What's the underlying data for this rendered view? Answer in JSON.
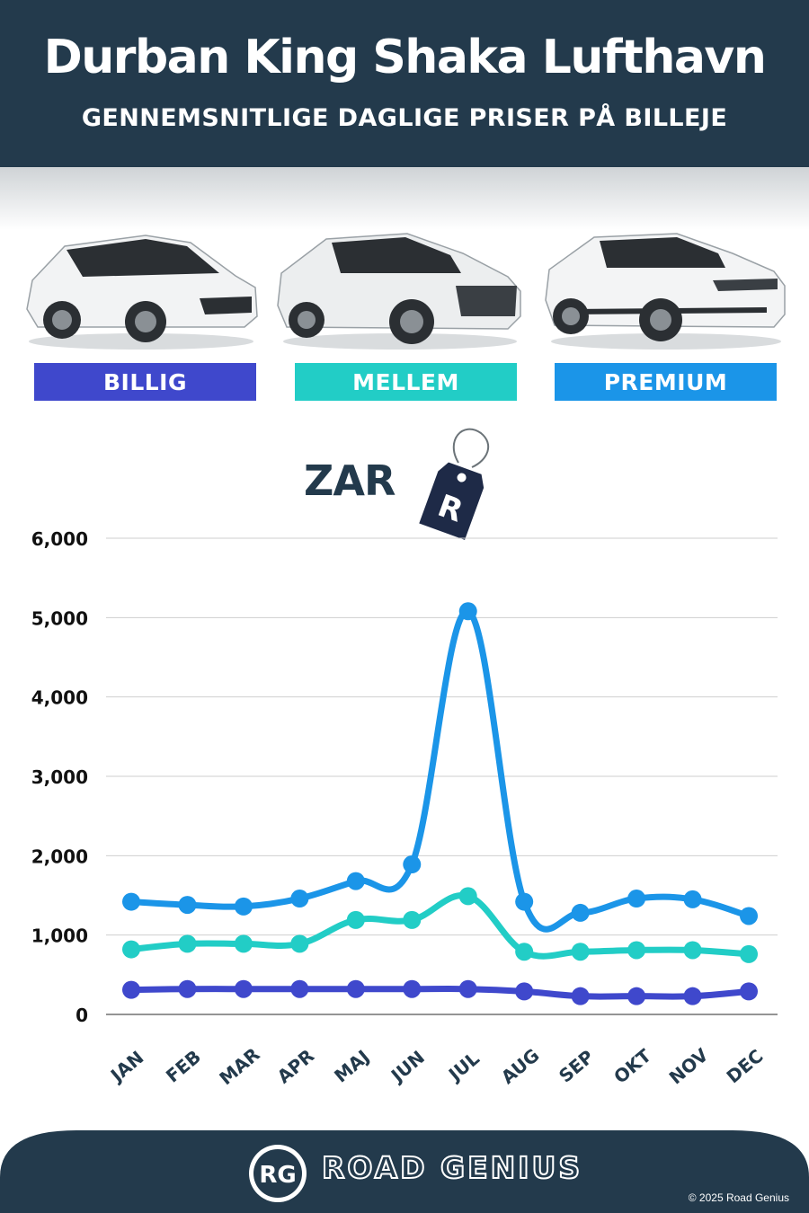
{
  "header": {
    "title": "Durban King Shaka Lufthavn",
    "subtitle": "GENNEMSNITLIGE DAGLIGE PRISER PÅ BILLEJE"
  },
  "categories": [
    {
      "label": "BILLIG",
      "color": "#3f48cc",
      "car_icon": "hatchback-car-icon"
    },
    {
      "label": "MELLEM",
      "color": "#22cdc6",
      "car_icon": "suv-car-icon"
    },
    {
      "label": "PREMIUM",
      "color": "#1b95e8",
      "car_icon": "luxury-suv-car-icon"
    }
  ],
  "currency": {
    "label": "ZAR",
    "tag_symbol": "R"
  },
  "chart_data": {
    "type": "line",
    "categories": [
      "JAN",
      "FEB",
      "MAR",
      "APR",
      "MAJ",
      "JUN",
      "JUL",
      "AUG",
      "SEP",
      "OKT",
      "NOV",
      "DEC"
    ],
    "ylim": [
      0,
      6000
    ],
    "yticks": [
      "0",
      "1,000",
      "2,000",
      "3,000",
      "4,000",
      "5,000",
      "6,000"
    ],
    "grid": true,
    "series": [
      {
        "name": "PREMIUM",
        "color": "#1b95e8",
        "values": [
          1420,
          1380,
          1360,
          1460,
          1680,
          1890,
          5080,
          1420,
          1280,
          1460,
          1450,
          1240
        ]
      },
      {
        "name": "MELLEM",
        "color": "#22cdc6",
        "values": [
          820,
          890,
          890,
          890,
          1190,
          1190,
          1490,
          790,
          790,
          810,
          810,
          760
        ]
      },
      {
        "name": "BILLIG",
        "color": "#3f48cc",
        "values": [
          310,
          320,
          320,
          320,
          320,
          320,
          320,
          290,
          230,
          230,
          230,
          290
        ]
      }
    ]
  },
  "footer": {
    "logo_text": "RG",
    "brand": "ROAD GENIUS",
    "copyright": "© 2025 Road Genius",
    "background": "#233a4c"
  }
}
